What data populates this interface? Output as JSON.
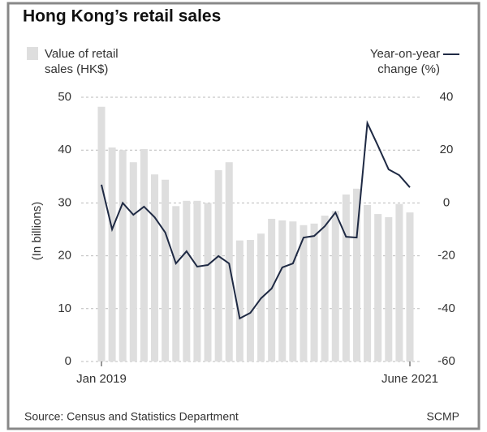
{
  "chart_data": {
    "type": "bar-line",
    "title": "Hong Kong’s retail sales",
    "ylabel": "(In billions)",
    "source": "Source: Census and Statistics Department",
    "credit": "SCMP",
    "categories": [
      "Jan 2019",
      null,
      null,
      null,
      null,
      null,
      null,
      null,
      null,
      null,
      null,
      null,
      null,
      null,
      null,
      null,
      null,
      null,
      null,
      null,
      null,
      null,
      null,
      null,
      null,
      null,
      null,
      null,
      null,
      "June 2021"
    ],
    "series": [
      {
        "name": "Value of retail sales (HK$)",
        "type": "bar",
        "color": "#dedede",
        "axis": "y",
        "values": [
          48.2,
          40.5,
          40,
          37.7,
          40.2,
          35.4,
          34.4,
          29.4,
          30.4,
          30.4,
          30,
          36.2,
          37.7,
          22.9,
          23,
          24.2,
          27,
          26.7,
          26.5,
          25.8,
          26.1,
          27.6,
          28.5,
          31.6,
          32.7,
          29.6,
          27.9,
          27.3,
          29.8,
          28.2
        ]
      },
      {
        "name": "Year-on-year change (%)",
        "type": "line",
        "color": "#1f2a44",
        "axis": "y2",
        "values": [
          6.9,
          -10,
          0,
          -4.5,
          -1.4,
          -5.4,
          -11.2,
          -22.9,
          -18.3,
          -24.1,
          -23.5,
          -20.1,
          -22.9,
          -43.7,
          -41.6,
          -36.1,
          -32.4,
          -24.4,
          -22.9,
          -13.1,
          -12.5,
          -8.8,
          -3.6,
          -12.8,
          -13.1,
          30.2,
          21.6,
          12.7,
          10.5,
          5.9
        ]
      }
    ],
    "ylim": [
      0,
      50
    ],
    "yticks": [
      0,
      10,
      20,
      30,
      40,
      50
    ],
    "y2lim": [
      -60,
      40
    ],
    "y2ticks": [
      -60,
      -40,
      -20,
      0,
      20,
      40
    ],
    "grid": true
  }
}
